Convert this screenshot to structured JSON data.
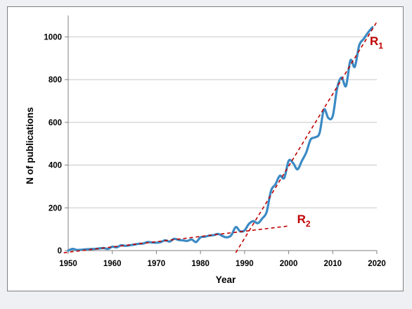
{
  "chart_data": {
    "type": "line",
    "title": "",
    "xlabel": "Year",
    "ylabel": "N of publications",
    "xlim": [
      1950,
      2020
    ],
    "ylim": [
      0,
      1100
    ],
    "x_ticks": [
      1950,
      1960,
      1970,
      1980,
      1990,
      2000,
      2010,
      2020
    ],
    "y_ticks": [
      0,
      200,
      400,
      600,
      800,
      1000
    ],
    "grid": "horizontal",
    "colors": {
      "series": "#3b8ac4",
      "trend": "#c00000",
      "grid": "#c8c8c8",
      "axis": "#808080"
    },
    "series": [
      {
        "x": [
          1950,
          1951,
          1952,
          1953,
          1954,
          1955,
          1956,
          1957,
          1958,
          1959,
          1960,
          1961,
          1962,
          1963,
          1964,
          1965,
          1966,
          1967,
          1968,
          1969,
          1970,
          1971,
          1972,
          1973,
          1974,
          1975,
          1976,
          1977,
          1978,
          1979,
          1980,
          1981,
          1982,
          1983,
          1984,
          1985,
          1986,
          1987,
          1988,
          1989,
          1990,
          1991,
          1992,
          1993,
          1994,
          1995,
          1996,
          1997,
          1998,
          1999,
          2000,
          2001,
          2002,
          2003,
          2004,
          2005,
          2006,
          2007,
          2008,
          2009,
          2010,
          2011,
          2012,
          2013,
          2014,
          2015,
          2016,
          2017,
          2018,
          2019
        ],
        "values": [
          0,
          8,
          3,
          4,
          6,
          7,
          8,
          10,
          12,
          8,
          18,
          15,
          25,
          22,
          25,
          28,
          32,
          33,
          40,
          38,
          37,
          40,
          48,
          42,
          55,
          50,
          48,
          45,
          52,
          40,
          62,
          65,
          70,
          72,
          78,
          68,
          62,
          72,
          110,
          90,
          95,
          125,
          138,
          128,
          150,
          180,
          280,
          310,
          350,
          340,
          420,
          410,
          380,
          420,
          460,
          520,
          530,
          550,
          660,
          620,
          630,
          760,
          810,
          770,
          890,
          860,
          960,
          990,
          1020,
          1045
        ]
      }
    ],
    "trend_lines": [
      {
        "label": "R",
        "subscript": "1",
        "from": [
          1988,
          -10
        ],
        "to": [
          2020,
          1070
        ]
      },
      {
        "label": "R",
        "subscript": "2",
        "from": [
          1949,
          -10
        ],
        "to": [
          2000,
          115
        ]
      }
    ]
  }
}
